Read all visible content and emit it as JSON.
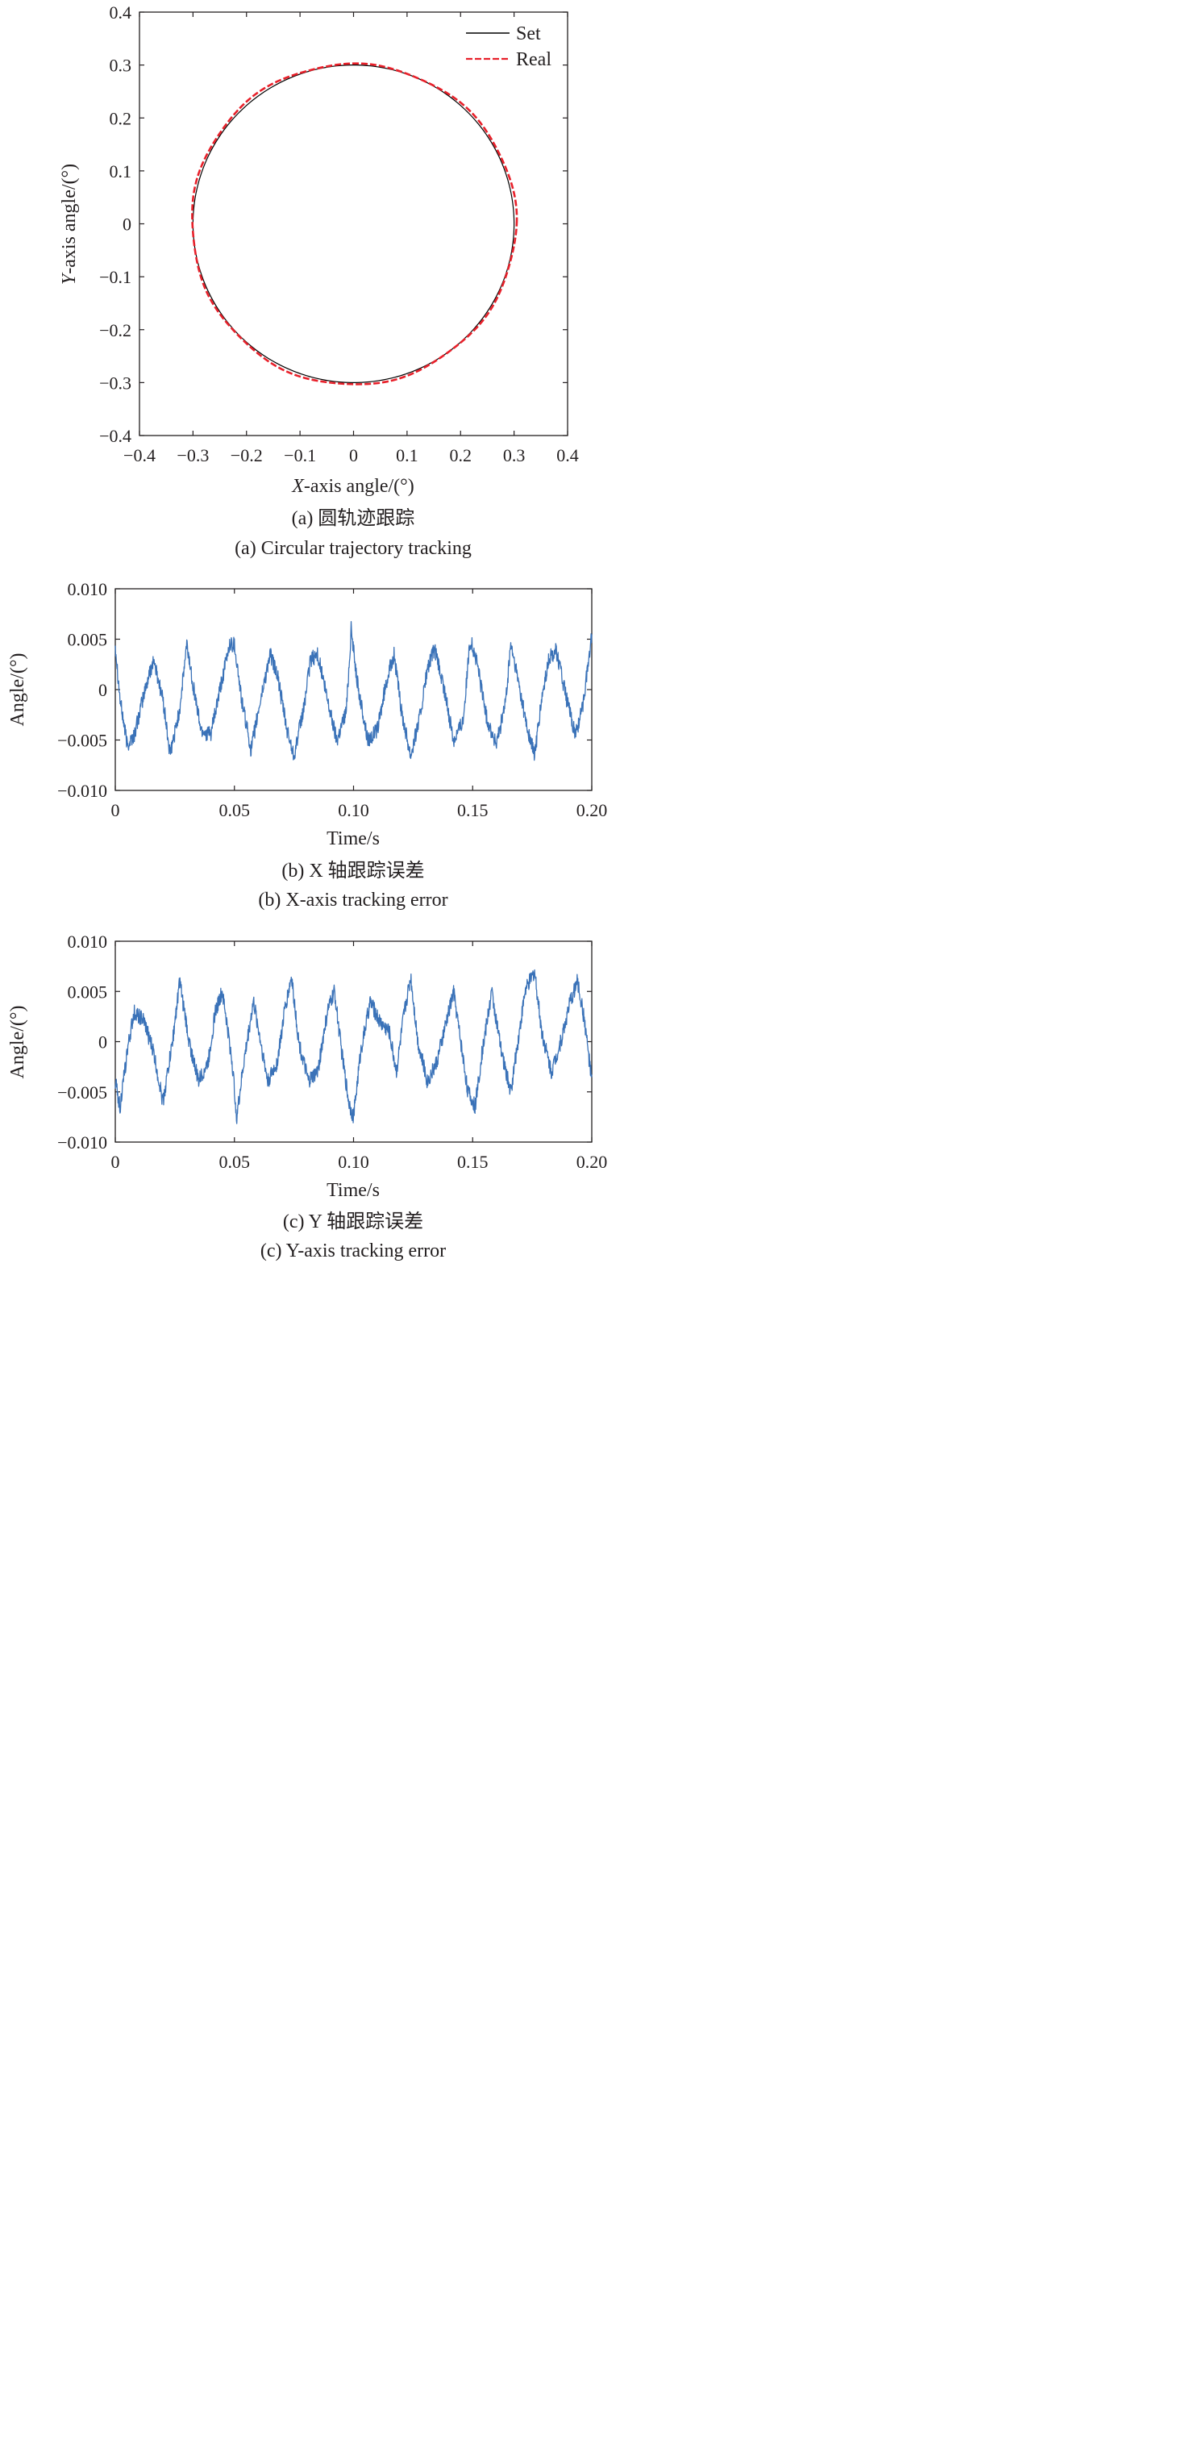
{
  "colors": {
    "set": "#000000",
    "real": "#e8202a",
    "error": "#3a72b8"
  },
  "panels": [
    {
      "caption_cn": "(a) 圆轨迹跟踪",
      "caption_en": "(a) Circular trajectory tracking"
    },
    {
      "caption_cn": "(b) X 轴跟踪误差",
      "caption_en": "(b) X-axis tracking error"
    },
    {
      "caption_cn": "(c) Y 轴跟踪误差",
      "caption_en": "(c) Y-axis tracking error"
    }
  ],
  "chart_data": [
    {
      "type": "line",
      "xlabel_var": "X",
      "xlabel_rest": "-axis angle/(°)",
      "ylabel_var": "Y",
      "ylabel_rest": "-axis angle/(°)",
      "xlim": [
        -0.4,
        0.4
      ],
      "ylim": [
        -0.4,
        0.4
      ],
      "xticks": [
        -0.4,
        -0.3,
        -0.2,
        -0.1,
        0,
        0.1,
        0.2,
        0.3,
        0.4
      ],
      "yticks": [
        -0.4,
        -0.3,
        -0.2,
        -0.1,
        0,
        0.1,
        0.2,
        0.3,
        0.4
      ],
      "xtick_labels": [
        "−0.4",
        "−0.3",
        "−0.2",
        "−0.1",
        "0",
        "0.1",
        "0.2",
        "0.3",
        "0.4"
      ],
      "ytick_labels": [
        "−0.4",
        "−0.3",
        "−0.2",
        "−0.1",
        "0",
        "0.1",
        "0.2",
        "0.3",
        "0.4"
      ],
      "legend_position": "top-right",
      "grid": false,
      "series": [
        {
          "name": "Set",
          "style": "solid",
          "shape": "circle",
          "center": [
            0,
            0
          ],
          "radius": 0.3
        },
        {
          "name": "Real",
          "style": "dashed",
          "shape": "circle",
          "center": [
            0,
            0
          ],
          "radius": 0.3,
          "deviation": 0.006
        }
      ]
    },
    {
      "type": "line",
      "xlabel": "Time/s",
      "ylabel": "Angle/(°)",
      "xlim": [
        0,
        0.2
      ],
      "ylim": [
        -0.01,
        0.01
      ],
      "xticks": [
        0,
        0.05,
        0.1,
        0.15,
        0.2
      ],
      "xtick_labels": [
        "0",
        "0.05",
        "0.10",
        "0.15",
        "0.20"
      ],
      "yticks": [
        0.01,
        0.005,
        0,
        -0.005,
        -0.01
      ],
      "ytick_labels": [
        "0.010",
        "0.005",
        "0",
        "−0.005",
        "−0.010"
      ],
      "grid": false,
      "series": [
        {
          "x": [
            0.0,
            0.002,
            0.005,
            0.008,
            0.012,
            0.016,
            0.02,
            0.023,
            0.027,
            0.03,
            0.033,
            0.036,
            0.04,
            0.044,
            0.048,
            0.05,
            0.053,
            0.057,
            0.061,
            0.065,
            0.068,
            0.072,
            0.075,
            0.079,
            0.082,
            0.085,
            0.089,
            0.093,
            0.097,
            0.099,
            0.102,
            0.106,
            0.11,
            0.114,
            0.117,
            0.12,
            0.124,
            0.128,
            0.131,
            0.134,
            0.138,
            0.142,
            0.146,
            0.149,
            0.152,
            0.156,
            0.16,
            0.164,
            0.166,
            0.169,
            0.173,
            0.176,
            0.179,
            0.182,
            0.185,
            0.189,
            0.193,
            0.196,
            0.2
          ],
          "y": [
            0.0045,
            -0.001,
            -0.0055,
            -0.0045,
            -0.0005,
            0.003,
            -0.001,
            -0.0065,
            -0.002,
            0.0045,
            0.0,
            -0.004,
            -0.0045,
            0.0,
            0.0045,
            0.0045,
            -0.001,
            -0.006,
            -0.001,
            0.0035,
            0.0015,
            -0.004,
            -0.0065,
            -0.002,
            0.003,
            0.0035,
            -0.001,
            -0.005,
            -0.002,
            0.006,
            0.0,
            -0.005,
            -0.004,
            0.001,
            0.0035,
            -0.002,
            -0.0065,
            -0.0025,
            0.002,
            0.004,
            0.0,
            -0.005,
            -0.003,
            0.005,
            0.0025,
            -0.003,
            -0.0055,
            -0.001,
            0.0045,
            0.001,
            -0.004,
            -0.0065,
            -0.001,
            0.003,
            0.004,
            -0.0005,
            -0.0045,
            -0.002,
            0.0055
          ]
        }
      ]
    },
    {
      "type": "line",
      "xlabel": "Time/s",
      "ylabel": "Angle/(°)",
      "xlim": [
        0,
        0.2
      ],
      "ylim": [
        -0.01,
        0.01
      ],
      "xticks": [
        0,
        0.05,
        0.1,
        0.15,
        0.2
      ],
      "xtick_labels": [
        "0",
        "0.05",
        "0.10",
        "0.15",
        "0.20"
      ],
      "yticks": [
        0.01,
        0.005,
        0,
        -0.005,
        -0.01
      ],
      "ytick_labels": [
        "0.010",
        "0.005",
        "0",
        "−0.005",
        "−0.010"
      ],
      "grid": false,
      "series": [
        {
          "x": [
            0.0,
            0.002,
            0.005,
            0.008,
            0.012,
            0.016,
            0.02,
            0.024,
            0.027,
            0.031,
            0.035,
            0.039,
            0.042,
            0.045,
            0.049,
            0.051,
            0.054,
            0.058,
            0.061,
            0.064,
            0.068,
            0.071,
            0.074,
            0.077,
            0.081,
            0.085,
            0.089,
            0.092,
            0.095,
            0.098,
            0.1,
            0.103,
            0.107,
            0.111,
            0.115,
            0.118,
            0.121,
            0.124,
            0.127,
            0.131,
            0.135,
            0.139,
            0.142,
            0.145,
            0.148,
            0.151,
            0.154,
            0.158,
            0.162,
            0.166,
            0.169,
            0.172,
            0.176,
            0.179,
            0.183,
            0.187,
            0.191,
            0.194,
            0.197,
            0.2
          ],
          "y": [
            -0.004,
            -0.0065,
            -0.001,
            0.003,
            0.002,
            -0.001,
            -0.006,
            0.0,
            0.006,
            0.0,
            -0.004,
            -0.002,
            0.003,
            0.005,
            -0.002,
            -0.0075,
            -0.002,
            0.004,
            0.0,
            -0.004,
            -0.002,
            0.003,
            0.0065,
            0.0,
            -0.004,
            -0.003,
            0.003,
            0.005,
            -0.001,
            -0.006,
            -0.0075,
            -0.001,
            0.004,
            0.002,
            0.001,
            -0.003,
            0.0025,
            0.0065,
            0.0,
            -0.004,
            -0.002,
            0.002,
            0.005,
            0.0,
            -0.005,
            -0.0065,
            -0.001,
            0.005,
            -0.001,
            -0.005,
            0.0,
            0.005,
            0.007,
            0.001,
            -0.003,
            0.0,
            0.004,
            0.006,
            0.002,
            -0.004
          ]
        }
      ]
    }
  ]
}
